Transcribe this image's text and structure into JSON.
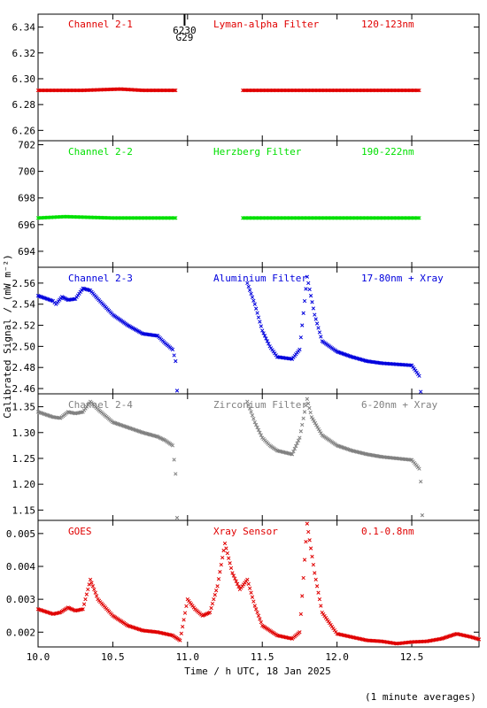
{
  "figure": {
    "xlabel": "Time / h UTC, 18 Jan 2025",
    "ylabel": "Calibrated Signal / (mW m⁻²)",
    "footnote": "(1 minute averages)",
    "marker": {
      "x": 10.98,
      "labels": [
        "6230",
        "G29"
      ]
    }
  },
  "chart_data": [
    {
      "type": "scatter",
      "labels": [
        "Channel 2-1",
        "Lyman-alpha Filter",
        "120-123nm"
      ],
      "color": "#e00000",
      "xlim": [
        10.0,
        12.95
      ],
      "ylim": [
        6.252,
        6.35
      ],
      "yticks": [
        6.26,
        6.28,
        6.3,
        6.32,
        6.34
      ],
      "ytick_labels": [
        "6.26",
        "6.28",
        "6.30",
        "6.32",
        "6.34"
      ],
      "segments": [
        [
          [
            10.0,
            6.291
          ],
          [
            10.3,
            6.291
          ],
          [
            10.55,
            6.292
          ],
          [
            10.7,
            6.291
          ],
          [
            10.92,
            6.291
          ]
        ],
        [
          [
            11.37,
            6.291
          ],
          [
            11.8,
            6.291
          ],
          [
            12.2,
            6.291
          ],
          [
            12.55,
            6.291
          ]
        ]
      ]
    },
    {
      "type": "scatter",
      "labels": [
        "Channel 2-2",
        "Herzberg Filter",
        "190-222nm"
      ],
      "color": "#00e000",
      "xlim": [
        10.0,
        12.95
      ],
      "ylim": [
        692.8,
        702.3
      ],
      "yticks": [
        694,
        696,
        698,
        700,
        702
      ],
      "ytick_labels": [
        "694",
        "696",
        "698",
        "700",
        "702"
      ],
      "segments": [
        [
          [
            10.0,
            696.5
          ],
          [
            10.18,
            696.6
          ],
          [
            10.5,
            696.5
          ],
          [
            10.92,
            696.5
          ]
        ],
        [
          [
            11.37,
            696.5
          ],
          [
            12.0,
            696.5
          ],
          [
            12.55,
            696.5
          ]
        ]
      ]
    },
    {
      "type": "scatter",
      "labels": [
        "Channel 2-3",
        "Aluminium Filter",
        "17-80nm + Xray"
      ],
      "color": "#0000dd",
      "xlim": [
        10.0,
        12.95
      ],
      "ylim": [
        2.455,
        2.575
      ],
      "yticks": [
        2.46,
        2.48,
        2.5,
        2.52,
        2.54,
        2.56
      ],
      "ytick_labels": [
        "2.46",
        "2.48",
        "2.50",
        "2.52",
        "2.54",
        "2.56"
      ],
      "segments": [
        [
          [
            10.0,
            2.548
          ],
          [
            10.1,
            2.543
          ],
          [
            10.12,
            2.54
          ],
          [
            10.16,
            2.547
          ],
          [
            10.2,
            2.544
          ],
          [
            10.25,
            2.545
          ],
          [
            10.3,
            2.555
          ],
          [
            10.35,
            2.553
          ],
          [
            10.4,
            2.545
          ],
          [
            10.5,
            2.53
          ],
          [
            10.6,
            2.52
          ],
          [
            10.7,
            2.512
          ],
          [
            10.8,
            2.51
          ],
          [
            10.85,
            2.503
          ],
          [
            10.9,
            2.497
          ],
          [
            10.92,
            2.486
          ],
          [
            10.93,
            2.458
          ]
        ],
        [
          [
            11.4,
            2.56
          ],
          [
            11.45,
            2.54
          ],
          [
            11.5,
            2.515
          ],
          [
            11.55,
            2.5
          ],
          [
            11.6,
            2.49
          ],
          [
            11.7,
            2.488
          ],
          [
            11.75,
            2.497
          ],
          [
            11.8,
            2.566
          ],
          [
            11.85,
            2.53
          ],
          [
            11.9,
            2.505
          ],
          [
            12.0,
            2.495
          ],
          [
            12.1,
            2.49
          ],
          [
            12.2,
            2.486
          ],
          [
            12.3,
            2.484
          ],
          [
            12.4,
            2.483
          ],
          [
            12.5,
            2.482
          ],
          [
            12.55,
            2.472
          ],
          [
            12.56,
            2.457
          ]
        ]
      ]
    },
    {
      "type": "scatter",
      "labels": [
        "Channel 2-4",
        "Zirconium Filter",
        "6-20nm + Xray"
      ],
      "color": "#808080",
      "xlim": [
        10.0,
        12.95
      ],
      "ylim": [
        1.13,
        1.375
      ],
      "yticks": [
        1.15,
        1.2,
        1.25,
        1.3,
        1.35
      ],
      "ytick_labels": [
        "1.15",
        "1.20",
        "1.25",
        "1.30",
        "1.35"
      ],
      "segments": [
        [
          [
            10.0,
            1.34
          ],
          [
            10.1,
            1.33
          ],
          [
            10.15,
            1.328
          ],
          [
            10.2,
            1.34
          ],
          [
            10.25,
            1.337
          ],
          [
            10.3,
            1.34
          ],
          [
            10.35,
            1.36
          ],
          [
            10.4,
            1.345
          ],
          [
            10.5,
            1.32
          ],
          [
            10.6,
            1.31
          ],
          [
            10.7,
            1.3
          ],
          [
            10.8,
            1.292
          ],
          [
            10.85,
            1.285
          ],
          [
            10.9,
            1.275
          ],
          [
            10.92,
            1.22
          ],
          [
            10.93,
            1.135
          ]
        ],
        [
          [
            11.4,
            1.36
          ],
          [
            11.45,
            1.32
          ],
          [
            11.5,
            1.29
          ],
          [
            11.55,
            1.275
          ],
          [
            11.6,
            1.265
          ],
          [
            11.7,
            1.258
          ],
          [
            11.75,
            1.29
          ],
          [
            11.8,
            1.365
          ],
          [
            11.83,
            1.33
          ],
          [
            11.9,
            1.295
          ],
          [
            12.0,
            1.275
          ],
          [
            12.1,
            1.265
          ],
          [
            12.2,
            1.258
          ],
          [
            12.3,
            1.253
          ],
          [
            12.4,
            1.25
          ],
          [
            12.5,
            1.247
          ],
          [
            12.55,
            1.23
          ],
          [
            12.56,
            1.205
          ],
          [
            12.57,
            1.14
          ]
        ]
      ]
    },
    {
      "type": "scatter",
      "labels": [
        "GOES",
        "Xray Sensor",
        "0.1-0.8nm"
      ],
      "color": "#e00000",
      "xlim": [
        10.0,
        12.95
      ],
      "ylim": [
        0.00155,
        0.0054
      ],
      "yticks": [
        0.002,
        0.003,
        0.004,
        0.005
      ],
      "ytick_labels": [
        "0.002",
        "0.003",
        "0.004",
        "0.005"
      ],
      "segments": [
        [
          [
            10.0,
            0.0027
          ],
          [
            10.1,
            0.00255
          ],
          [
            10.15,
            0.0026
          ],
          [
            10.2,
            0.00275
          ],
          [
            10.25,
            0.00265
          ],
          [
            10.3,
            0.0027
          ],
          [
            10.35,
            0.0036
          ],
          [
            10.4,
            0.003
          ],
          [
            10.5,
            0.0025
          ],
          [
            10.6,
            0.0022
          ],
          [
            10.7,
            0.00205
          ],
          [
            10.8,
            0.002
          ],
          [
            10.9,
            0.0019
          ],
          [
            10.95,
            0.00175
          ],
          [
            11.0,
            0.003
          ],
          [
            11.05,
            0.0027
          ],
          [
            11.1,
            0.0025
          ],
          [
            11.15,
            0.0026
          ],
          [
            11.2,
            0.0034
          ],
          [
            11.25,
            0.0047
          ],
          [
            11.3,
            0.0038
          ],
          [
            11.35,
            0.0033
          ],
          [
            11.4,
            0.0036
          ],
          [
            11.45,
            0.0028
          ],
          [
            11.5,
            0.0022
          ],
          [
            11.6,
            0.0019
          ],
          [
            11.7,
            0.0018
          ],
          [
            11.75,
            0.002
          ],
          [
            11.8,
            0.0053
          ],
          [
            11.85,
            0.0038
          ],
          [
            11.9,
            0.0026
          ],
          [
            12.0,
            0.00195
          ],
          [
            12.1,
            0.00185
          ],
          [
            12.2,
            0.00175
          ],
          [
            12.3,
            0.00172
          ],
          [
            12.4,
            0.00165
          ],
          [
            12.5,
            0.0017
          ],
          [
            12.6,
            0.00172
          ],
          [
            12.7,
            0.0018
          ],
          [
            12.8,
            0.00195
          ],
          [
            12.9,
            0.00185
          ],
          [
            12.95,
            0.00178
          ]
        ]
      ]
    }
  ],
  "xaxis": {
    "ticks": [
      10.0,
      10.5,
      11.0,
      11.5,
      12.0,
      12.5
    ],
    "tick_labels": [
      "10.0",
      "10.5",
      "11.0",
      "11.5",
      "12.0",
      "12.5"
    ]
  }
}
